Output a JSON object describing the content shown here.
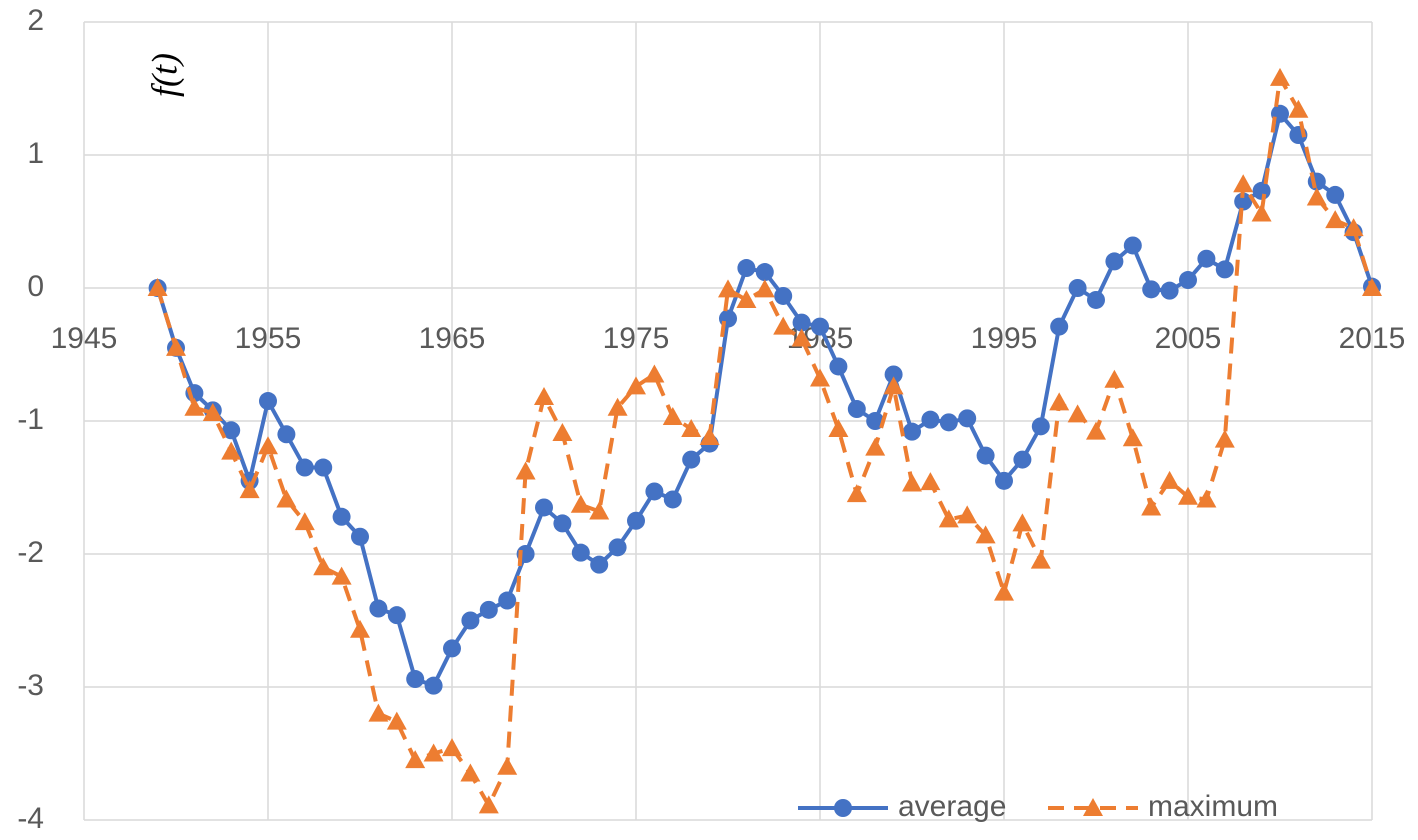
{
  "chart_data": {
    "type": "line",
    "ylabel": "f(t)",
    "x": [
      1949,
      1950,
      1951,
      1952,
      1953,
      1954,
      1955,
      1956,
      1957,
      1958,
      1959,
      1960,
      1961,
      1962,
      1963,
      1964,
      1965,
      1966,
      1967,
      1968,
      1969,
      1970,
      1971,
      1972,
      1973,
      1974,
      1975,
      1976,
      1977,
      1978,
      1979,
      1980,
      1981,
      1982,
      1983,
      1984,
      1985,
      1986,
      1987,
      1988,
      1989,
      1990,
      1991,
      1992,
      1993,
      1994,
      1995,
      1996,
      1997,
      1998,
      1999,
      2000,
      2001,
      2002,
      2003,
      2004,
      2005,
      2006,
      2007,
      2008,
      2009,
      2010,
      2011,
      2012,
      2013,
      2014,
      2015
    ],
    "series": [
      {
        "name": "average",
        "color": "#4472c4",
        "dash": false,
        "marker": "circle",
        "values": [
          0,
          -0.45,
          -0.79,
          -0.92,
          -1.07,
          -1.45,
          -0.85,
          -1.1,
          -1.35,
          -1.35,
          -1.72,
          -1.87,
          -2.41,
          -2.46,
          -2.94,
          -2.99,
          -2.71,
          -2.5,
          -2.42,
          -2.35,
          -2.0,
          -1.65,
          -1.77,
          -1.99,
          -2.08,
          -1.95,
          -1.75,
          -1.53,
          -1.59,
          -1.29,
          -1.17,
          -0.23,
          0.15,
          0.12,
          -0.06,
          -0.26,
          -0.29,
          -0.59,
          -0.91,
          -1.0,
          -0.65,
          -1.08,
          -0.99,
          -1.01,
          -0.98,
          -1.26,
          -1.45,
          -1.29,
          -1.04,
          -0.29,
          0.0,
          -0.09,
          0.2,
          0.32,
          -0.01,
          -0.02,
          0.06,
          0.22,
          0.14,
          0.65,
          0.73,
          1.31,
          1.15,
          0.8,
          0.7,
          0.42,
          0.01
        ]
      },
      {
        "name": "maximum",
        "color": "#ed7d31",
        "dash": true,
        "marker": "triangle",
        "values": [
          0,
          -0.45,
          -0.9,
          -0.94,
          -1.23,
          -1.52,
          -1.19,
          -1.59,
          -1.76,
          -2.1,
          -2.17,
          -2.57,
          -3.2,
          -3.26,
          -3.55,
          -3.5,
          -3.46,
          -3.65,
          -3.89,
          -3.6,
          -1.38,
          -0.82,
          -1.09,
          -1.63,
          -1.68,
          -0.9,
          -0.74,
          -0.65,
          -0.97,
          -1.06,
          -1.12,
          -0.01,
          -0.09,
          -0.01,
          -0.29,
          -0.38,
          -0.68,
          -1.06,
          -1.55,
          -1.2,
          -0.74,
          -1.47,
          -1.46,
          -1.74,
          -1.71,
          -1.86,
          -2.29,
          -1.77,
          -2.05,
          -0.86,
          -0.95,
          -1.08,
          -0.69,
          -1.13,
          -1.65,
          -1.45,
          -1.57,
          -1.59,
          -1.14,
          0.78,
          0.56,
          1.58,
          1.34,
          0.68,
          0.51,
          0.45,
          0
        ]
      }
    ],
    "xlim": [
      1945,
      2015
    ],
    "xticks": [
      1945,
      1955,
      1965,
      1975,
      1985,
      1995,
      2005,
      2015
    ],
    "ylim": [
      -4,
      2
    ],
    "yticks": [
      -4,
      -3,
      -2,
      -1,
      0,
      1,
      2
    ],
    "grid": true,
    "legend": "lower right"
  }
}
